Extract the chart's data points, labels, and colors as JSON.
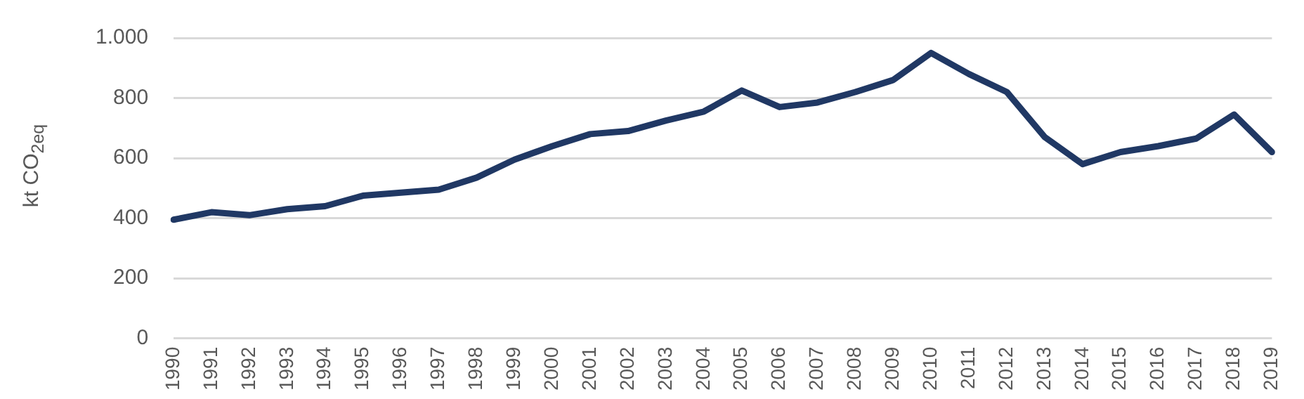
{
  "chart_data": {
    "type": "line",
    "ylabel": "kt CO$_{2eq}$",
    "categories": [
      "1990",
      "1991",
      "1992",
      "1993",
      "1994",
      "1995",
      "1996",
      "1997",
      "1998",
      "1999",
      "2000",
      "2001",
      "2002",
      "2003",
      "2004",
      "2005",
      "2006",
      "2007",
      "2008",
      "2009",
      "2010",
      "2011",
      "2012",
      "2013",
      "2014",
      "2015",
      "2016",
      "2017",
      "2018",
      "2019"
    ],
    "series": [
      {
        "color": "#203864",
        "values": [
          395,
          420,
          410,
          430,
          440,
          475,
          485,
          495,
          535,
          595,
          640,
          680,
          690,
          725,
          755,
          825,
          770,
          785,
          820,
          860,
          950,
          880,
          820,
          670,
          580,
          620,
          640,
          665,
          745,
          620
        ]
      }
    ],
    "ylim": [
      0,
      1000
    ],
    "yticks": [
      0,
      200,
      400,
      600,
      800,
      {
        "value": 1000,
        "label": "1.000"
      }
    ],
    "grid": "y",
    "legend": false,
    "marker": "none",
    "line_style": "solid"
  }
}
